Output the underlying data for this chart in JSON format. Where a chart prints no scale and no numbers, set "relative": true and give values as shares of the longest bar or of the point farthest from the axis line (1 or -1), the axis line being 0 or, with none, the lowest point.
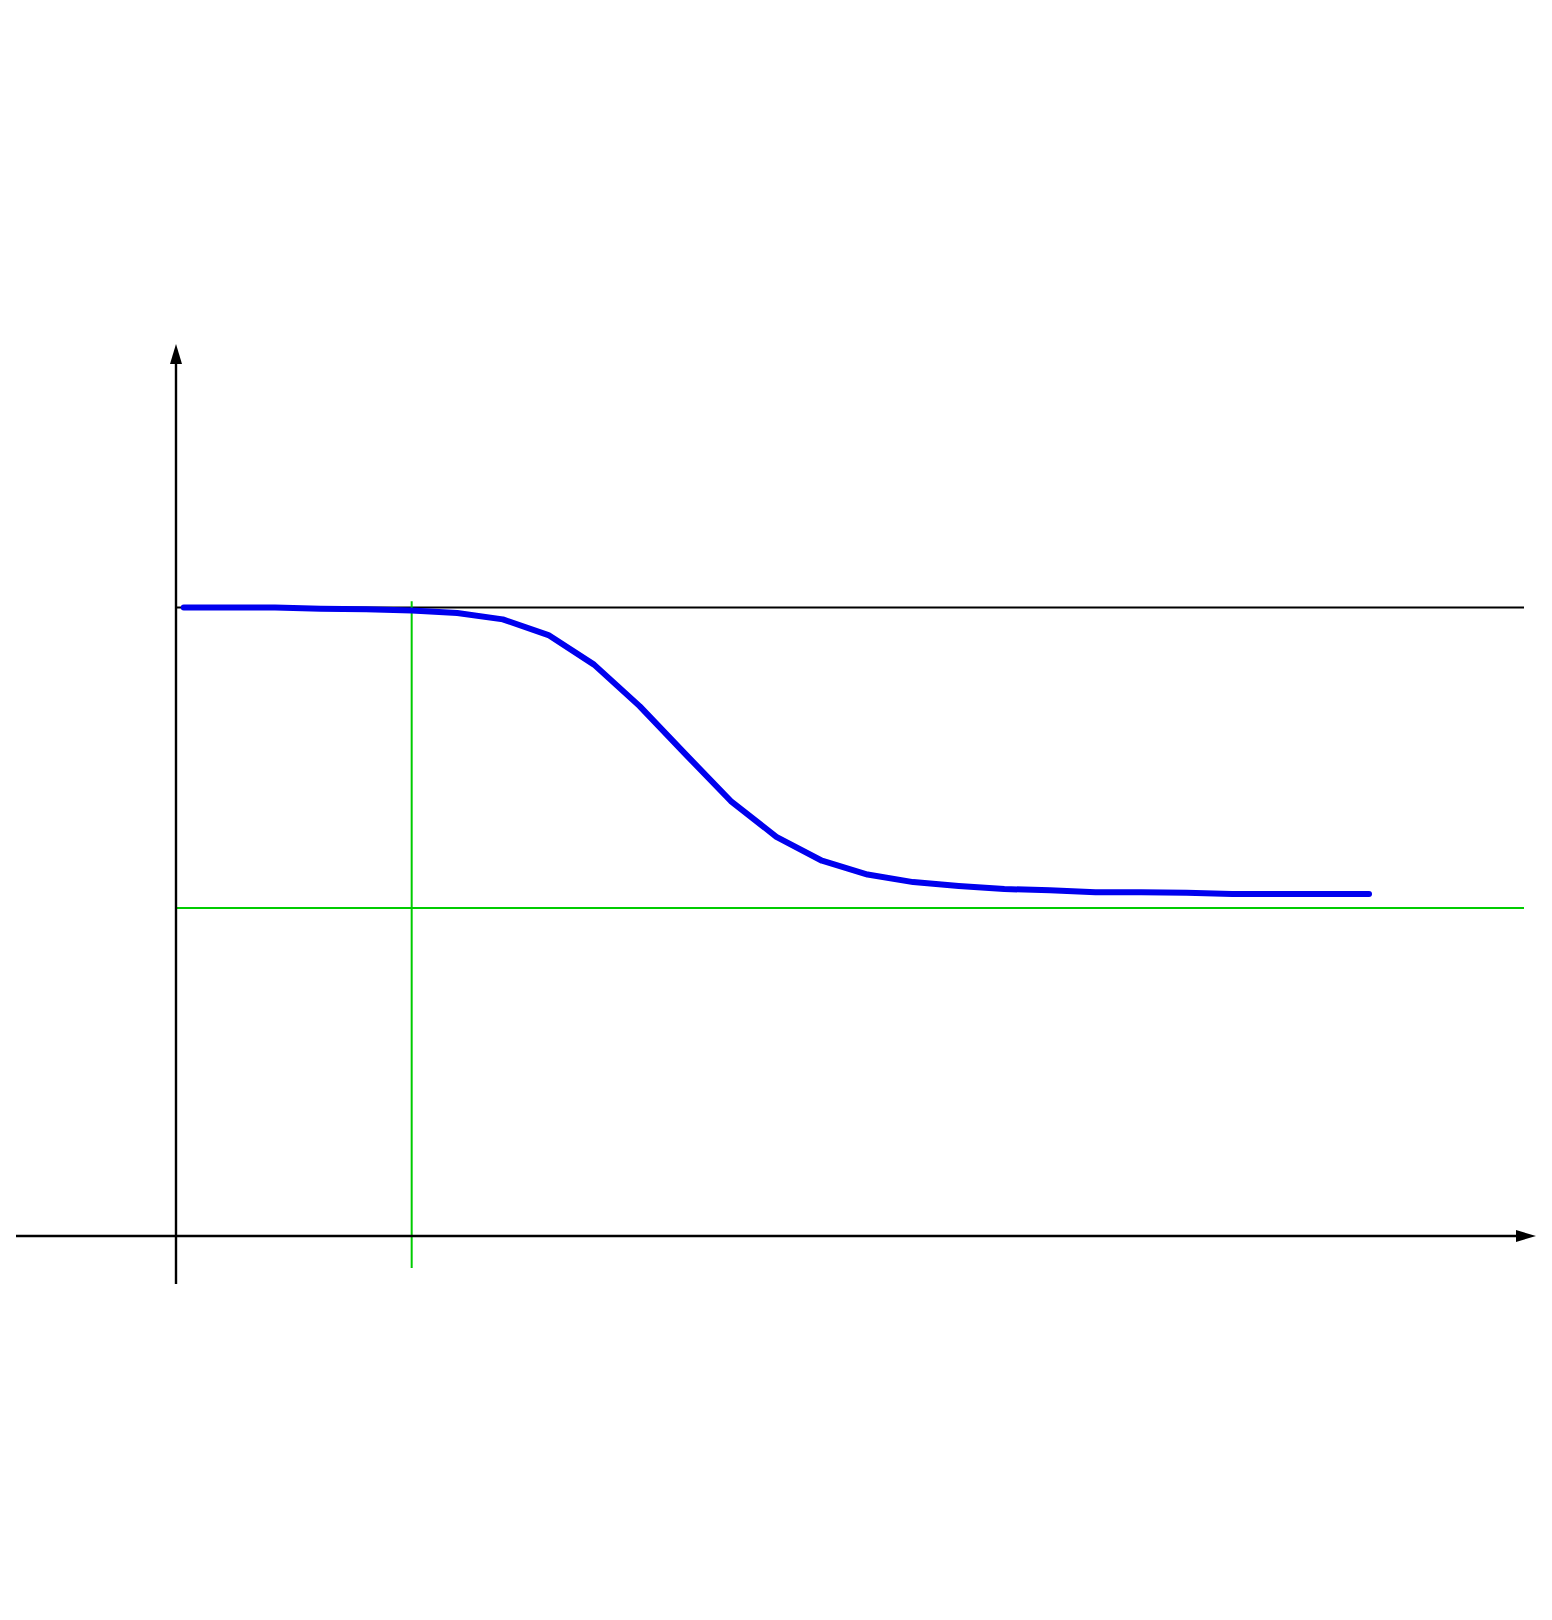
{
  "chart_data": {
    "type": "line",
    "relative": true,
    "categories": [
      null,
      null,
      null,
      null,
      null,
      null,
      null,
      null,
      null,
      null,
      null,
      null,
      null,
      null,
      null,
      null,
      null,
      null,
      null,
      null,
      null,
      null,
      null,
      null,
      null,
      null,
      null
    ],
    "series": [
      {
        "color": "#0000ee",
        "values": [
          1.0,
          1.0,
          1.0,
          0.998,
          0.997,
          0.995,
          0.991,
          0.981,
          0.956,
          0.909,
          0.843,
          0.767,
          0.692,
          0.635,
          0.597,
          0.575,
          0.563,
          0.557,
          0.552,
          0.55,
          0.547,
          0.547,
          0.546,
          0.544,
          0.544,
          0.544,
          0.544
        ]
      }
    ],
    "ref_lines": [
      {
        "axis": "y",
        "value": 1.0,
        "color": "#000000"
      },
      {
        "axis": "y",
        "value": 0.522,
        "color": "#00cc00"
      }
    ],
    "marker": "none",
    "line_style": "solid",
    "legend": false
  }
}
